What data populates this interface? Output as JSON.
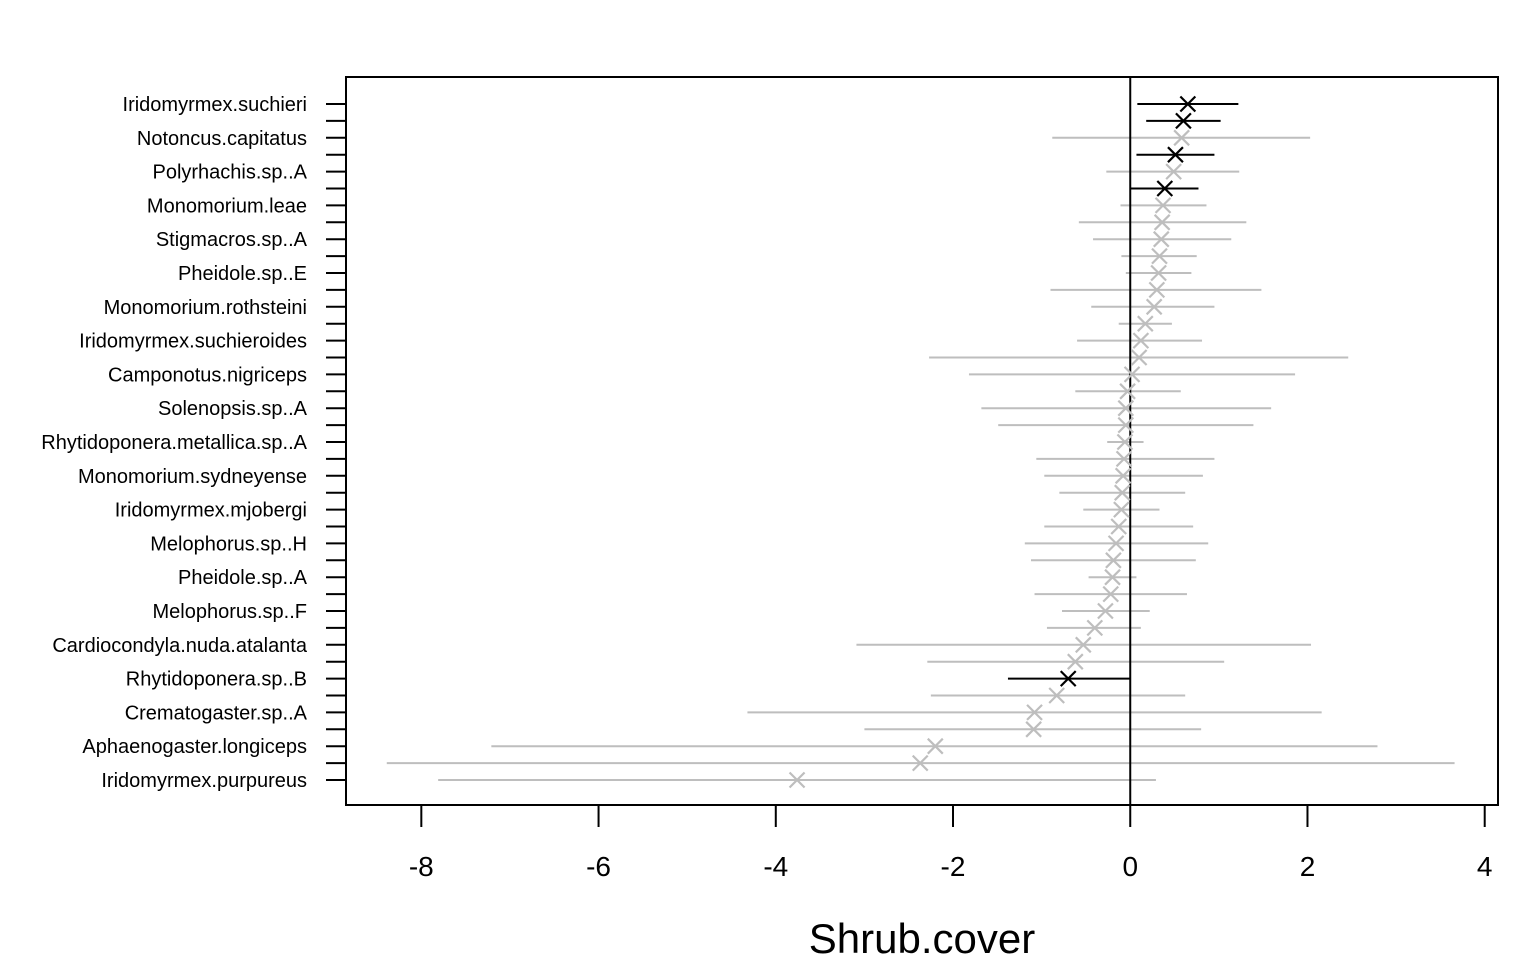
{
  "chart_data": {
    "type": "scatter",
    "xlabel": "Shrub.cover",
    "ylabel": "",
    "xlim": [
      -8.85,
      4.15
    ],
    "x_ticks": [
      "-8",
      "-6",
      "-4",
      "-2",
      "0",
      "2",
      "4"
    ],
    "reference_line_x": 0,
    "grid": false,
    "legend": "none",
    "colors": {
      "significant": "#000000",
      "nonsignificant": "#bebebe",
      "axis": "#000000"
    },
    "marker": "x",
    "labeled_categories": [
      "Iridomyrmex.suchieri",
      "Notoncus.capitatus",
      "Polyrhachis.sp..A",
      "Monomorium.leae",
      "Stigmacros.sp..A",
      "Pheidole.sp..E",
      "Monomorium.rothsteini",
      "Iridomyrmex.suchieroides",
      "Camponotus.nigriceps",
      "Solenopsis.sp..A",
      "Rhytidoponera.metallica.sp..A",
      "Monomorium.sydneyense",
      "Iridomyrmex.mjobergi",
      "Melophorus.sp..H",
      "Pheidole.sp..A",
      "Melophorus.sp..F",
      "Cardiocondyla.nuda.atalanta",
      "Rhytidoponera.sp..B",
      "Crematogaster.sp..A",
      "Aphaenogaster.longiceps",
      "Iridomyrmex.purpureus"
    ],
    "points": [
      {
        "x": 0.65,
        "lo": 0.08,
        "hi": 1.22,
        "sig": true
      },
      {
        "x": 0.6,
        "lo": 0.18,
        "hi": 1.02,
        "sig": true
      },
      {
        "x": 0.58,
        "lo": -0.88,
        "hi": 2.03,
        "sig": false
      },
      {
        "x": 0.51,
        "lo": 0.07,
        "hi": 0.95,
        "sig": true
      },
      {
        "x": 0.49,
        "lo": -0.27,
        "hi": 1.23,
        "sig": false
      },
      {
        "x": 0.39,
        "lo": 0.0,
        "hi": 0.77,
        "sig": true
      },
      {
        "x": 0.37,
        "lo": -0.11,
        "hi": 0.86,
        "sig": false
      },
      {
        "x": 0.36,
        "lo": -0.58,
        "hi": 1.31,
        "sig": false
      },
      {
        "x": 0.35,
        "lo": -0.42,
        "hi": 1.14,
        "sig": false
      },
      {
        "x": 0.33,
        "lo": -0.1,
        "hi": 0.75,
        "sig": false
      },
      {
        "x": 0.32,
        "lo": -0.05,
        "hi": 0.69,
        "sig": false
      },
      {
        "x": 0.3,
        "lo": -0.9,
        "hi": 1.48,
        "sig": false
      },
      {
        "x": 0.27,
        "lo": -0.44,
        "hi": 0.95,
        "sig": false
      },
      {
        "x": 0.17,
        "lo": -0.13,
        "hi": 0.47,
        "sig": false
      },
      {
        "x": 0.12,
        "lo": -0.6,
        "hi": 0.81,
        "sig": false
      },
      {
        "x": 0.1,
        "lo": -2.27,
        "hi": 2.46,
        "sig": false
      },
      {
        "x": 0.02,
        "lo": -1.82,
        "hi": 1.86,
        "sig": false
      },
      {
        "x": -0.03,
        "lo": -0.62,
        "hi": 0.57,
        "sig": false
      },
      {
        "x": -0.05,
        "lo": -1.68,
        "hi": 1.59,
        "sig": false
      },
      {
        "x": -0.05,
        "lo": -1.49,
        "hi": 1.39,
        "sig": false
      },
      {
        "x": -0.06,
        "lo": -0.26,
        "hi": 0.15,
        "sig": false
      },
      {
        "x": -0.07,
        "lo": -1.06,
        "hi": 0.95,
        "sig": false
      },
      {
        "x": -0.08,
        "lo": -0.97,
        "hi": 0.82,
        "sig": false
      },
      {
        "x": -0.09,
        "lo": -0.8,
        "hi": 0.62,
        "sig": false
      },
      {
        "x": -0.1,
        "lo": -0.53,
        "hi": 0.33,
        "sig": false
      },
      {
        "x": -0.13,
        "lo": -0.97,
        "hi": 0.71,
        "sig": false
      },
      {
        "x": -0.16,
        "lo": -1.19,
        "hi": 0.88,
        "sig": false
      },
      {
        "x": -0.19,
        "lo": -1.12,
        "hi": 0.74,
        "sig": false
      },
      {
        "x": -0.2,
        "lo": -0.47,
        "hi": 0.07,
        "sig": false
      },
      {
        "x": -0.22,
        "lo": -1.08,
        "hi": 0.64,
        "sig": false
      },
      {
        "x": -0.28,
        "lo": -0.77,
        "hi": 0.22,
        "sig": false
      },
      {
        "x": -0.4,
        "lo": -0.94,
        "hi": 0.12,
        "sig": false
      },
      {
        "x": -0.53,
        "lo": -3.09,
        "hi": 2.04,
        "sig": false
      },
      {
        "x": -0.62,
        "lo": -2.29,
        "hi": 1.06,
        "sig": false
      },
      {
        "x": -0.7,
        "lo": -1.38,
        "hi": 0.0,
        "sig": true
      },
      {
        "x": -0.83,
        "lo": -2.25,
        "hi": 0.62,
        "sig": false
      },
      {
        "x": -1.08,
        "lo": -4.32,
        "hi": 2.16,
        "sig": false
      },
      {
        "x": -1.09,
        "lo": -3.0,
        "hi": 0.8,
        "sig": false
      },
      {
        "x": -2.2,
        "lo": -7.21,
        "hi": 2.79,
        "sig": false
      },
      {
        "x": -2.37,
        "lo": -8.39,
        "hi": 3.66,
        "sig": false
      },
      {
        "x": -3.76,
        "lo": -7.81,
        "hi": 0.29,
        "sig": false
      }
    ]
  }
}
